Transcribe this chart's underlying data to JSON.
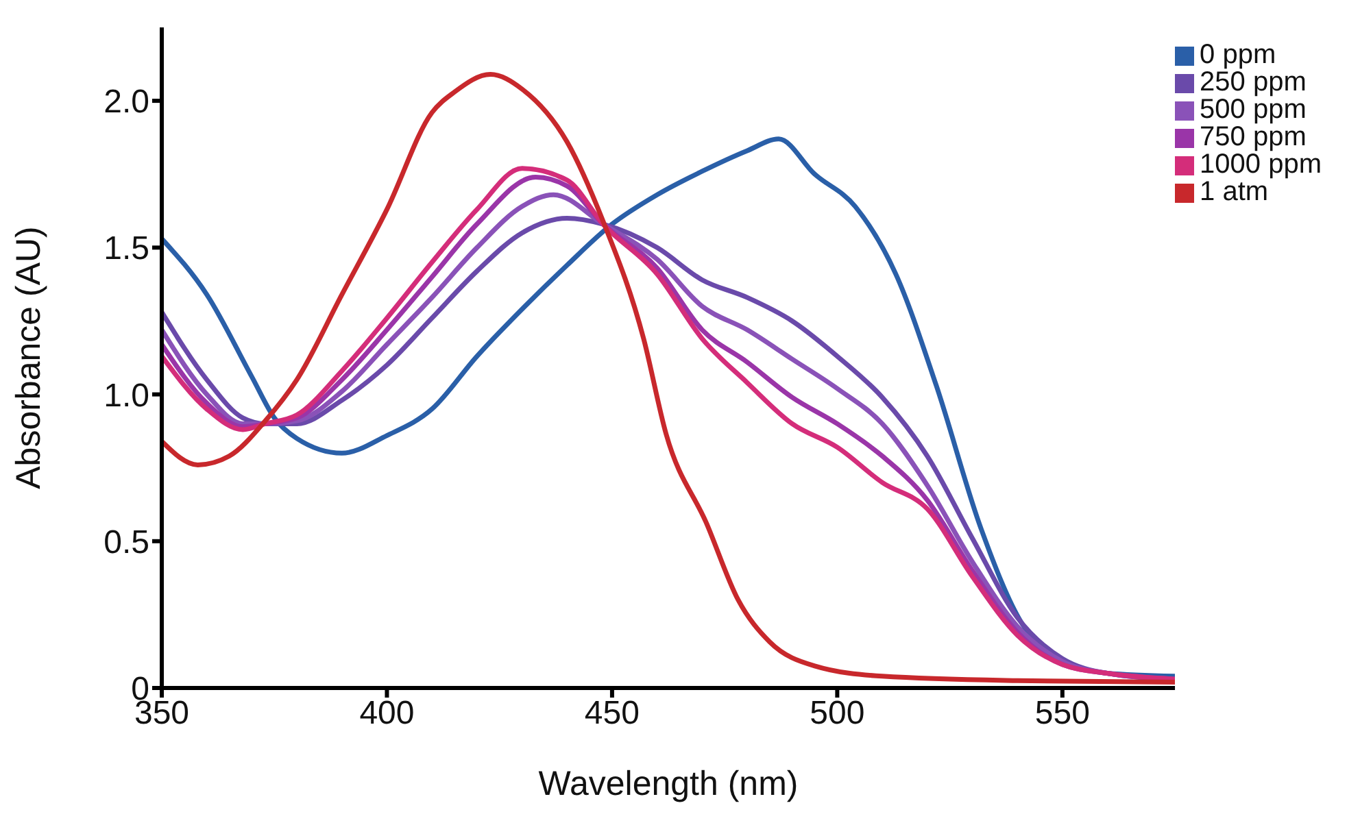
{
  "chart_data": {
    "type": "line",
    "xlabel": "Wavelength (nm)",
    "ylabel": "Absorbance (AU)",
    "xlim": [
      350,
      575
    ],
    "xticks": [
      350,
      400,
      450,
      500,
      550
    ],
    "ylim": [
      0,
      2.25
    ],
    "yticks": [
      0,
      0.5,
      {
        "value": 1,
        "label": "1.0"
      },
      1.5,
      {
        "value": 2,
        "label": "2.0"
      }
    ],
    "grid": false,
    "legend": "top right",
    "marker": "none",
    "line_style": "solid",
    "series": [
      {
        "name": "0 ppm",
        "color": "#2a5fa8",
        "x": [
          350,
          360,
          370,
          375,
          380,
          390,
          400,
          410,
          420,
          430,
          440,
          450,
          460,
          470,
          480,
          487,
          495,
          504,
          513,
          522,
          532,
          541,
          551,
          560,
          575
        ],
        "values": [
          1.53,
          1.34,
          1.06,
          0.92,
          0.85,
          0.8,
          0.86,
          0.95,
          1.13,
          1.29,
          1.44,
          1.58,
          1.68,
          1.76,
          1.83,
          1.87,
          1.75,
          1.64,
          1.41,
          1.03,
          0.54,
          0.22,
          0.09,
          0.05,
          0.04
        ]
      },
      {
        "name": "250 ppm",
        "color": "#6a4aaa",
        "x": [
          350,
          360,
          368,
          373,
          380,
          390,
          400,
          410,
          420,
          430,
          440,
          448,
          460,
          470,
          480,
          490,
          500,
          510,
          520,
          530,
          540,
          550,
          560,
          575
        ],
        "values": [
          1.28,
          1.05,
          0.92,
          0.9,
          0.9,
          0.98,
          1.1,
          1.26,
          1.42,
          1.55,
          1.6,
          1.58,
          1.5,
          1.39,
          1.33,
          1.25,
          1.13,
          0.99,
          0.79,
          0.51,
          0.24,
          0.1,
          0.05,
          0.03
        ]
      },
      {
        "name": "500 ppm",
        "color": "#8a52b8",
        "x": [
          350,
          360,
          368,
          373,
          380,
          390,
          400,
          410,
          420,
          430,
          437,
          448,
          460,
          470,
          480,
          490,
          500,
          510,
          520,
          530,
          540,
          550,
          560,
          575
        ],
        "values": [
          1.22,
          1.0,
          0.9,
          0.9,
          0.91,
          1.01,
          1.17,
          1.33,
          1.5,
          1.64,
          1.68,
          1.58,
          1.46,
          1.3,
          1.22,
          1.12,
          1.02,
          0.9,
          0.69,
          0.43,
          0.21,
          0.09,
          0.05,
          0.03
        ]
      },
      {
        "name": "750 ppm",
        "color": "#9a35a8",
        "x": [
          350,
          360,
          368,
          373,
          380,
          390,
          400,
          410,
          420,
          433,
          440,
          448,
          460,
          470,
          480,
          490,
          500,
          510,
          520,
          530,
          540,
          550,
          560,
          575
        ],
        "values": [
          1.17,
          0.97,
          0.89,
          0.9,
          0.92,
          1.05,
          1.22,
          1.4,
          1.58,
          1.74,
          1.71,
          1.58,
          1.43,
          1.22,
          1.11,
          0.99,
          0.9,
          0.79,
          0.64,
          0.4,
          0.19,
          0.08,
          0.05,
          0.03
        ]
      },
      {
        "name": "1000 ppm",
        "color": "#d42d7a",
        "x": [
          350,
          360,
          368,
          373,
          380,
          390,
          400,
          410,
          420,
          430,
          440,
          448,
          460,
          470,
          480,
          490,
          500,
          510,
          520,
          530,
          540,
          550,
          560,
          575
        ],
        "values": [
          1.13,
          0.95,
          0.88,
          0.9,
          0.93,
          1.08,
          1.26,
          1.45,
          1.63,
          1.77,
          1.73,
          1.58,
          1.41,
          1.19,
          1.04,
          0.9,
          0.82,
          0.7,
          0.61,
          0.38,
          0.18,
          0.08,
          0.05,
          0.03
        ]
      },
      {
        "name": "1 atm",
        "color": "#c8282c",
        "x": [
          350,
          358,
          365,
          373,
          380,
          390,
          400,
          410,
          415,
          423,
          430,
          440,
          448,
          457,
          462,
          471,
          478,
          485,
          495,
          510,
          540,
          575
        ],
        "values": [
          0.84,
          0.76,
          0.79,
          0.91,
          1.05,
          1.34,
          1.63,
          1.96,
          2.03,
          2.09,
          2.04,
          1.86,
          1.59,
          1.19,
          0.865,
          0.56,
          0.3,
          0.157,
          0.075,
          0.04,
          0.025,
          0.02
        ]
      }
    ]
  }
}
